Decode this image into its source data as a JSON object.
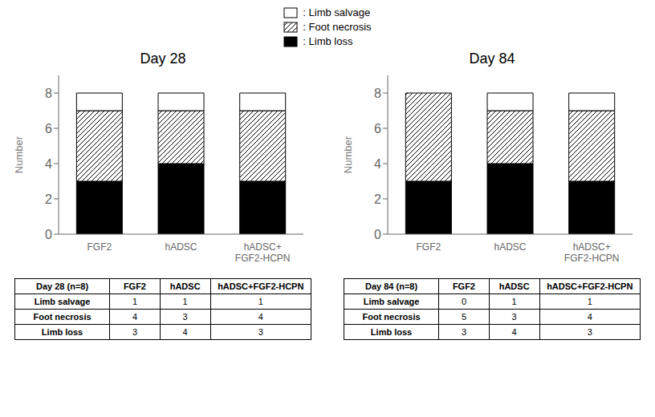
{
  "chart_data": [
    {
      "type": "bar",
      "stacked": true,
      "title": "Day 28",
      "categories": [
        "FGF2",
        "hADSC",
        "hADSC+\nFGF2-HCPN"
      ],
      "series": [
        {
          "name": ": Limb loss",
          "color": "#000000",
          "values": [
            3,
            4,
            3
          ]
        },
        {
          "name": ": Foot necrosis",
          "color": "#ffffff",
          "values": [
            4,
            3,
            4
          ]
        },
        {
          "name": ": Limb salvage",
          "color": "#ffffff",
          "values": [
            1,
            1,
            1
          ]
        }
      ],
      "ylabel": "Number",
      "ylim": [
        0,
        9
      ],
      "yticks": [
        0,
        2,
        4,
        6,
        8
      ],
      "legend": "top",
      "table": {
        "header": [
          "Day 28 (n=8)",
          "FGF2",
          "hADSC",
          "hADSC+FGF2-HCPN"
        ],
        "rows": [
          [
            "Limb salvage",
            "1",
            "1",
            "1"
          ],
          [
            "Foot necrosis",
            "4",
            "3",
            "4"
          ],
          [
            "Limb loss",
            "3",
            "4",
            "3"
          ]
        ]
      }
    },
    {
      "type": "bar",
      "stacked": true,
      "title": "Day 84",
      "categories": [
        "FGF2",
        "hADSC",
        "hADSC+\nFGF2-HCPN"
      ],
      "series": [
        {
          "name": ": Limb loss",
          "color": "#000000",
          "values": [
            3,
            4,
            3
          ]
        },
        {
          "name": ": Foot necrosis",
          "color": "#ffffff",
          "values": [
            5,
            3,
            4
          ]
        },
        {
          "name": ": Limb salvage",
          "color": "#ffffff",
          "values": [
            0,
            1,
            1
          ]
        }
      ],
      "ylabel": "Number",
      "ylim": [
        0,
        9
      ],
      "yticks": [
        0,
        2,
        4,
        6,
        8
      ],
      "legend": "top",
      "table": {
        "header": [
          "Day 84 (n=8)",
          "FGF2",
          "hADSC",
          "hADSC+FGF2-HCPN"
        ],
        "rows": [
          [
            "Limb salvage",
            "0",
            "1",
            "1"
          ],
          [
            "Foot necrosis",
            "5",
            "3",
            "4"
          ],
          [
            "Limb loss",
            "3",
            "4",
            "3"
          ]
        ]
      }
    }
  ]
}
